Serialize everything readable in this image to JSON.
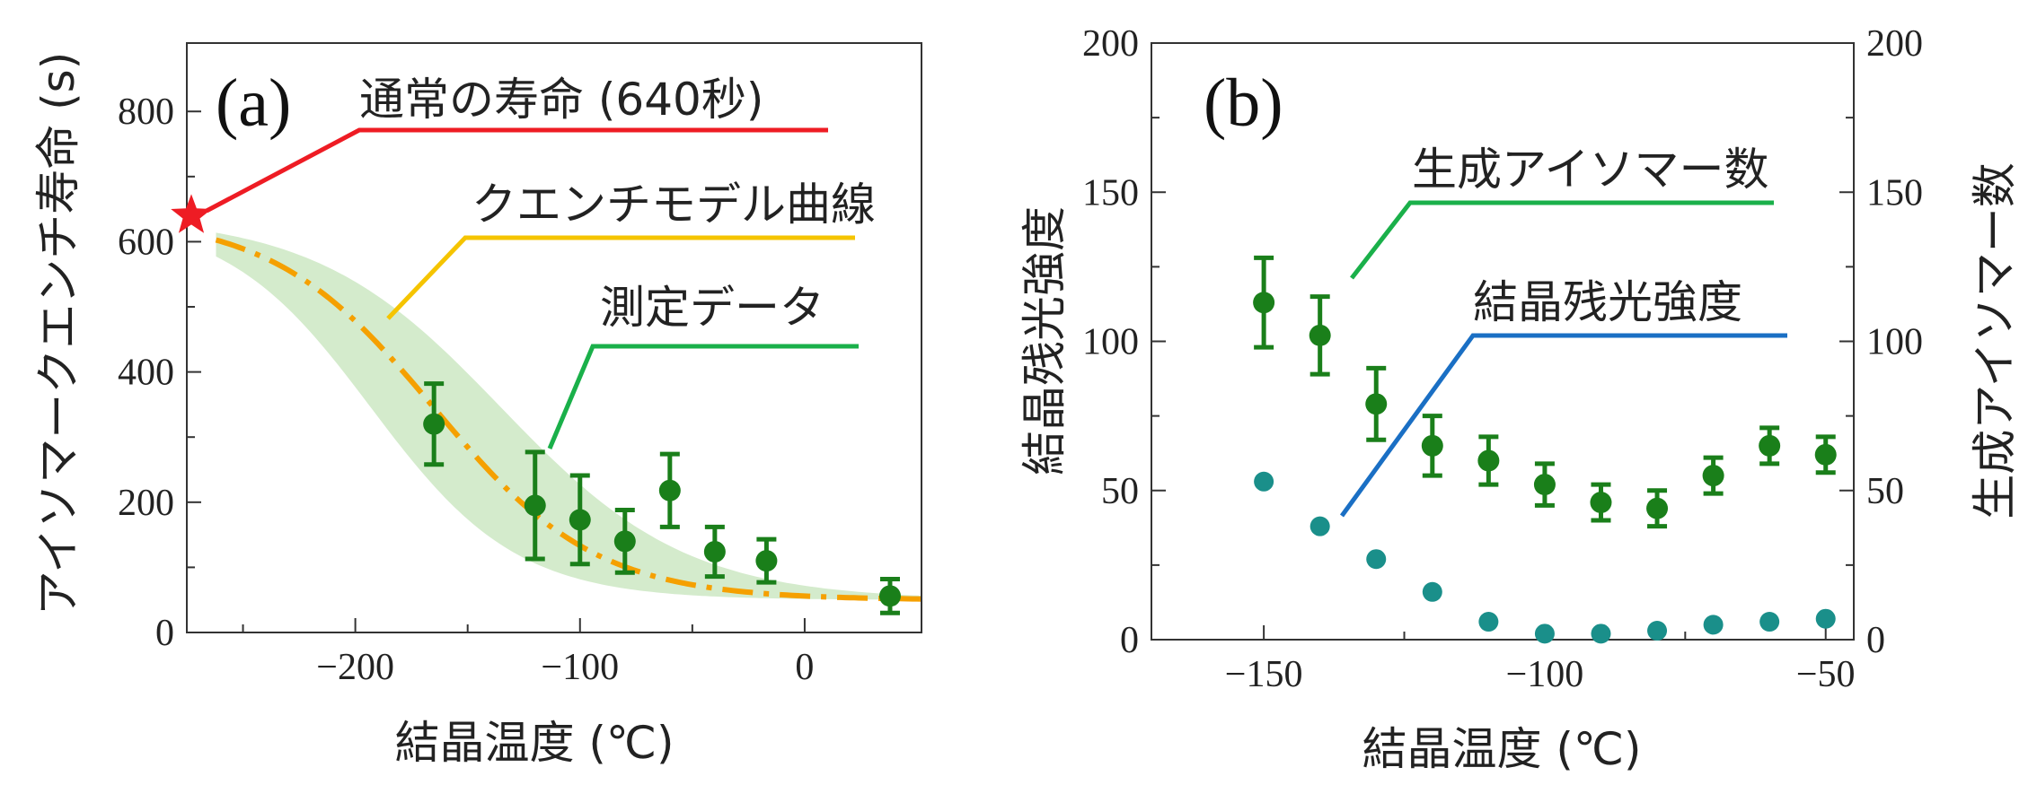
{
  "chart_data": [
    {
      "type": "scatter",
      "panel_label": "(a)",
      "xlabel": "結晶温度 (℃)",
      "ylabel": "アイソマークエンチ寿命 (s)",
      "xlim": [
        -275,
        52
      ],
      "ylim": [
        0,
        905
      ],
      "xticks": [
        -200,
        -100,
        0
      ],
      "xtick_labels": [
        "−200",
        "−100",
        "0"
      ],
      "yticks": [
        0,
        200,
        400,
        600,
        800
      ],
      "ytick_labels": [
        "0",
        "200",
        "400",
        "600",
        "800"
      ],
      "normal_lifetime": {
        "x": -273,
        "y": 640,
        "label": "通常の寿命 (640秒)",
        "color": "#ee1c24"
      },
      "model_curve": {
        "label": "クエンチモデル曲線",
        "color": "#f5a000",
        "plateau": 640,
        "floor": 50,
        "center": -165,
        "width": 36
      },
      "confidence_band": {
        "color": "#d4ebcc"
      },
      "measured": {
        "label": "測定データ",
        "color": "#1a7f1a",
        "label_color": "#1ab04a",
        "x": [
          -165,
          -120,
          -100,
          -80,
          -60,
          -40,
          -17,
          38
        ],
        "y": [
          320,
          195,
          173,
          140,
          218,
          124,
          110,
          56
        ],
        "err": [
          62,
          82,
          68,
          48,
          56,
          38,
          33,
          26
        ]
      }
    },
    {
      "type": "scatter",
      "panel_label": "(b)",
      "xlabel": "結晶温度 (℃)",
      "ylabel_left": "結晶残光強度",
      "ylabel_right": "生成アイソマー数",
      "xlim": [
        -170,
        -45
      ],
      "ylim": [
        0,
        200
      ],
      "xticks": [
        -150,
        -100,
        -50
      ],
      "xtick_labels": [
        "−150",
        "−100",
        "−50"
      ],
      "yticks": [
        0,
        50,
        100,
        150,
        200
      ],
      "ytick_labels": [
        "0",
        "50",
        "100",
        "150",
        "200"
      ],
      "isomer_count": {
        "label": "生成アイソマー数",
        "color": "#1a7f1a",
        "label_color": "#1ab04a",
        "x": [
          -150,
          -140,
          -130,
          -120,
          -110,
          -100,
          -90,
          -80,
          -70,
          -60,
          -50
        ],
        "y": [
          113,
          102,
          79,
          65,
          60,
          52,
          46,
          44,
          55,
          65,
          62
        ],
        "err": [
          15,
          13,
          12,
          10,
          8,
          7,
          6,
          6,
          6,
          6,
          6
        ]
      },
      "crystal_afterglow": {
        "label": "結晶残光強度",
        "color": "#1a8f8a",
        "label_color": "#1a6fc4",
        "x": [
          -150,
          -140,
          -130,
          -120,
          -110,
          -100,
          -90,
          -80,
          -70,
          -60,
          -50
        ],
        "y": [
          53,
          38,
          27,
          16,
          6,
          2,
          2,
          3,
          5,
          6,
          7
        ]
      }
    }
  ]
}
